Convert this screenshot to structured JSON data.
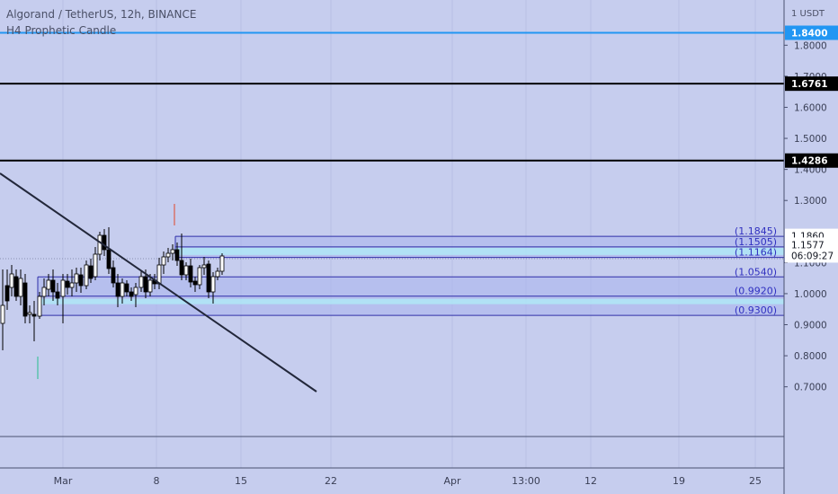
{
  "header": {
    "title": "Algorand / TetherUS, 12h, BINANCE",
    "indicator": "H4 Prophetic Candle"
  },
  "price_axis": {
    "currency": "USDT",
    "ticks": [
      "1.8000",
      "1.7000",
      "1.6000",
      "1.5000",
      "1.4000",
      "1.3000",
      "1.1000",
      "1.0000",
      "0.9000",
      "0.8000",
      "0.7000"
    ],
    "badges": [
      {
        "label": "1.8400",
        "price": 1.84,
        "style": "blue"
      },
      {
        "label": "1.6761",
        "price": 1.6761,
        "style": "black"
      },
      {
        "label": "1.4286",
        "price": 1.4286,
        "style": "black"
      },
      {
        "label": "1.1860",
        "price": 1.186,
        "style": "white"
      },
      {
        "label": "1.1577",
        "price": 1.1577,
        "style": "white"
      },
      {
        "label": "06:09:27",
        "price": 1.123,
        "style": "white"
      }
    ]
  },
  "time_axis": {
    "labels": [
      "Mar",
      "8",
      "15",
      "22",
      "Apr",
      "13:00",
      "12",
      "19",
      "25"
    ]
  },
  "horizontal_lines": [
    {
      "price": 1.84,
      "color": "#2196f3"
    },
    {
      "price": 1.6761,
      "color": "#000000"
    },
    {
      "price": 1.4286,
      "color": "#000000"
    }
  ],
  "zones": [
    {
      "label": "(1.1845)",
      "price": 1.1845
    },
    {
      "label": "(1.1505)",
      "price": 1.1505
    },
    {
      "label": "(1.1164)",
      "price": 1.1164
    },
    {
      "label": "(1.0540)",
      "price": 1.054
    },
    {
      "label": "(0.9920)",
      "price": 0.992
    },
    {
      "label": "(0.9300)",
      "price": 0.93
    }
  ],
  "colors": {
    "background": "#c6cdee",
    "grid": "#b8c0e4",
    "zone_line": "#2f2fa8",
    "zone_text": "#3030c0",
    "cyan": "#4fd9ef",
    "trendline": "#22273a",
    "candle_up": "#ffffff",
    "candle_down": "#000000"
  }
}
